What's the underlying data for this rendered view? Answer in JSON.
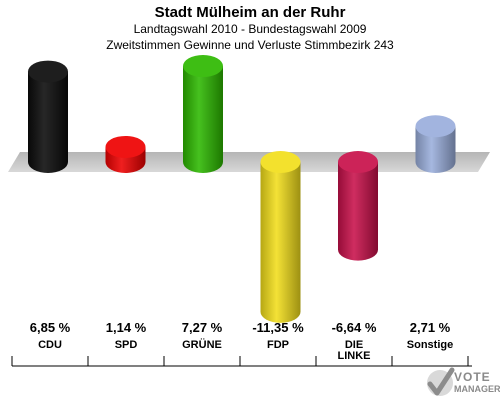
{
  "header": {
    "title": "Stadt Mülheim an der Ruhr",
    "subtitle1": "Landtagswahl 2010 - Bundestagswahl 2009",
    "subtitle2": "Zweitstimmen Gewinne und Verluste Stimmbezirk 243"
  },
  "chart_data": {
    "type": "bar",
    "title": "Stadt Mülheim an der Ruhr",
    "subtitle": "Landtagswahl 2010 - Bundestagswahl 2009 / Zweitstimmen Gewinne und Verluste Stimmbezirk 243",
    "categories": [
      "CDU",
      "SPD",
      "GRÜNE",
      "FDP",
      "DIE LINKE",
      "Sonstige"
    ],
    "values": [
      6.85,
      1.14,
      7.27,
      -11.35,
      -6.64,
      2.71
    ],
    "value_labels": [
      "6,85 %",
      "1,14 %",
      "7,27 %",
      "-11,35 %",
      "-6,64 %",
      "2,71 %"
    ],
    "category_labels": [
      [
        "CDU"
      ],
      [
        "SPD"
      ],
      [
        "GRÜNE"
      ],
      [
        "FDP"
      ],
      [
        "DIE",
        "LINKE"
      ],
      [
        "Sonstige"
      ]
    ],
    "colors": [
      "#0a0a0a",
      "#ee0000",
      "#2db800",
      "#f2de1b",
      "#c8104a",
      "#9aaedc"
    ],
    "ylim": [
      -12,
      8
    ],
    "grid": false
  },
  "logo": {
    "line1": "VOTE",
    "line2": "MANAGER"
  }
}
